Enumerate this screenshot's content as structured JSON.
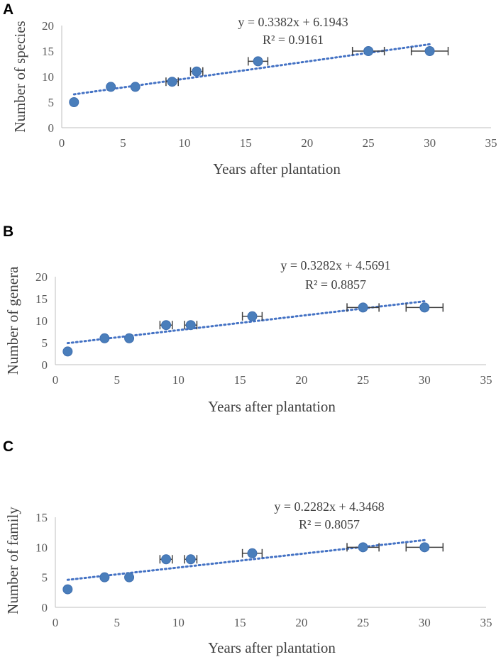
{
  "chart_data": [
    {
      "type": "scatter",
      "panel_label": "A",
      "xlabel": "Years after plantation",
      "ylabel": "Number of species",
      "xlim": [
        0,
        35
      ],
      "ylim": [
        0,
        20
      ],
      "x_ticks": [
        0,
        5,
        10,
        15,
        20,
        25,
        30,
        35
      ],
      "y_ticks": [
        0,
        5,
        10,
        15,
        20
      ],
      "equation": "y = 0.3382x + 6.1943",
      "r_squared": "R² = 0.9161",
      "trendline": {
        "slope": 0.3382,
        "intercept": 6.1943,
        "x_range": [
          1,
          30
        ]
      },
      "points": [
        {
          "x": 1,
          "y": 5,
          "xerr": 0
        },
        {
          "x": 4,
          "y": 8,
          "xerr": 0
        },
        {
          "x": 6,
          "y": 8,
          "xerr": 0
        },
        {
          "x": 9,
          "y": 9,
          "xerr": 0.5
        },
        {
          "x": 11,
          "y": 11,
          "xerr": 0.5
        },
        {
          "x": 16,
          "y": 13,
          "xerr": 0.8
        },
        {
          "x": 25,
          "y": 15,
          "xerr": 1.3
        },
        {
          "x": 30,
          "y": 15,
          "xerr": 1.5
        }
      ]
    },
    {
      "type": "scatter",
      "panel_label": "B",
      "xlabel": "Years after plantation",
      "ylabel": "Number of genera",
      "xlim": [
        0,
        35
      ],
      "ylim": [
        0,
        20
      ],
      "x_ticks": [
        0,
        5,
        10,
        15,
        20,
        25,
        30,
        35
      ],
      "y_ticks": [
        0,
        5,
        10,
        15,
        20
      ],
      "equation": "y = 0.3282x + 4.5691",
      "r_squared": "R² = 0.8857",
      "trendline": {
        "slope": 0.3282,
        "intercept": 4.5691,
        "x_range": [
          1,
          30
        ]
      },
      "points": [
        {
          "x": 1,
          "y": 3,
          "xerr": 0
        },
        {
          "x": 4,
          "y": 6,
          "xerr": 0
        },
        {
          "x": 6,
          "y": 6,
          "xerr": 0
        },
        {
          "x": 9,
          "y": 9,
          "xerr": 0.5
        },
        {
          "x": 11,
          "y": 9,
          "xerr": 0.5
        },
        {
          "x": 16,
          "y": 11,
          "xerr": 0.8
        },
        {
          "x": 25,
          "y": 13,
          "xerr": 1.3
        },
        {
          "x": 30,
          "y": 13,
          "xerr": 1.5
        }
      ]
    },
    {
      "type": "scatter",
      "panel_label": "C",
      "xlabel": "Years after plantation",
      "ylabel": "Number of family",
      "xlim": [
        0,
        35
      ],
      "ylim": [
        0,
        15
      ],
      "x_ticks": [
        0,
        5,
        10,
        15,
        20,
        25,
        30,
        35
      ],
      "y_ticks": [
        0,
        5,
        10,
        15
      ],
      "equation": "y = 0.2282x + 4.3468",
      "r_squared": "R² = 0.8057",
      "trendline": {
        "slope": 0.2282,
        "intercept": 4.3468,
        "x_range": [
          1,
          30
        ]
      },
      "points": [
        {
          "x": 1,
          "y": 3,
          "xerr": 0
        },
        {
          "x": 4,
          "y": 5,
          "xerr": 0
        },
        {
          "x": 6,
          "y": 5,
          "xerr": 0
        },
        {
          "x": 9,
          "y": 8,
          "xerr": 0.5
        },
        {
          "x": 11,
          "y": 8,
          "xerr": 0.5
        },
        {
          "x": 16,
          "y": 9,
          "xerr": 0.8
        },
        {
          "x": 25,
          "y": 10,
          "xerr": 1.3
        },
        {
          "x": 30,
          "y": 10,
          "xerr": 1.5
        }
      ]
    }
  ],
  "colors": {
    "points": "#4a7ebb",
    "trendline": "#4472c4",
    "error_bars": "#404040"
  }
}
